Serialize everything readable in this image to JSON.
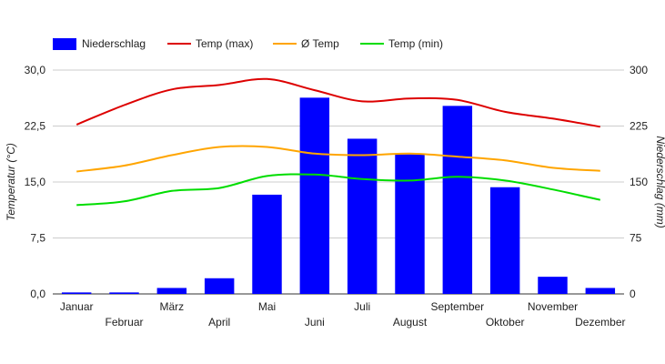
{
  "chart_data": {
    "type": "bar+line",
    "categories": [
      "Januar",
      "Februar",
      "März",
      "April",
      "Mai",
      "Juni",
      "Juli",
      "August",
      "September",
      "Oktober",
      "November",
      "Dezember"
    ],
    "bar_series": {
      "name": "Niederschlag",
      "color": "#0000ff",
      "values": [
        2,
        2,
        8,
        21,
        133,
        263,
        208,
        187,
        252,
        143,
        23,
        8
      ]
    },
    "line_series": [
      {
        "name": "Temp (max)",
        "color": "#dd0000",
        "values": [
          22.7,
          25.3,
          27.4,
          28.0,
          28.8,
          27.3,
          25.8,
          26.2,
          26.0,
          24.4,
          23.5,
          22.4
        ]
      },
      {
        "name": "Ø Temp",
        "color": "#ffa500",
        "values": [
          16.4,
          17.2,
          18.6,
          19.7,
          19.7,
          18.8,
          18.6,
          18.8,
          18.4,
          17.9,
          16.9,
          16.5
        ]
      },
      {
        "name": "Temp (min)",
        "color": "#00dd00",
        "values": [
          11.9,
          12.4,
          13.8,
          14.2,
          15.8,
          16.0,
          15.4,
          15.2,
          15.7,
          15.2,
          14.0,
          12.6
        ]
      }
    ],
    "y_left": {
      "label": "Temperatur (°C)",
      "ticks": [
        "0,0",
        "7,5",
        "15,0",
        "22,5",
        "30,0"
      ],
      "ylim": [
        0,
        30
      ]
    },
    "y_right": {
      "label": "Niederschlag (mm)",
      "ticks": [
        "0",
        "75",
        "150",
        "225",
        "300"
      ],
      "ylim": [
        0,
        300
      ]
    },
    "grid": true,
    "legend_position": "top-left"
  }
}
